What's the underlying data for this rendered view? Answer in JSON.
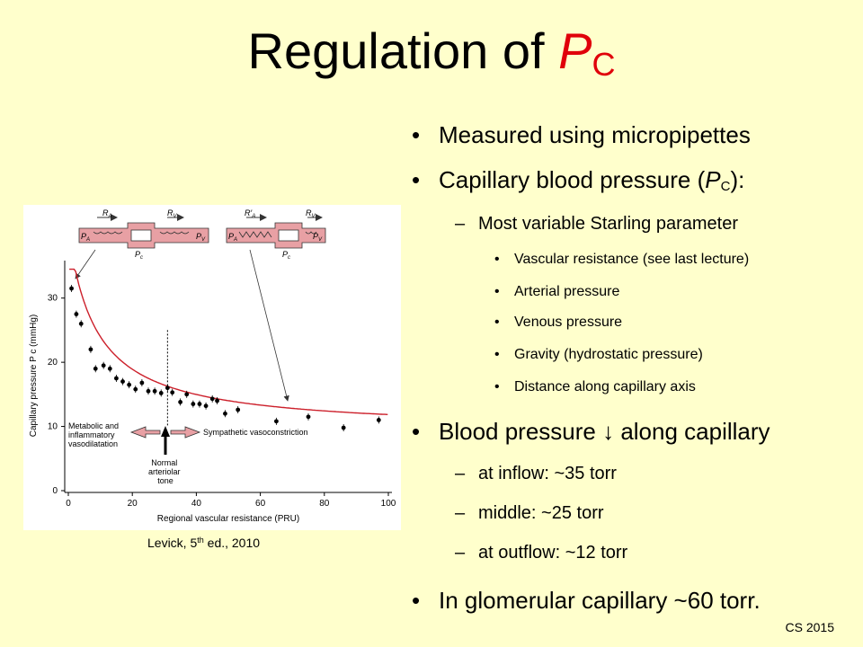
{
  "title": {
    "text": "Regulation of ",
    "pc_letter": "P",
    "pc_sub": "C"
  },
  "bullets": {
    "b1": "Measured using micropipettes",
    "b2_pre": "Capillary blood pressure (",
    "b2_p": "P",
    "b2_sub": "C",
    "b2_post": "):",
    "b2_dash1": "Most variable Starling parameter",
    "b2_items": [
      "Vascular resistance (see last lecture)",
      "Arterial pressure",
      "Venous pressure",
      "Gravity (hydrostatic pressure)",
      "Distance along capillary axis"
    ],
    "b3": "Blood pressure ↓ along capillary",
    "b3_items": [
      "at inflow: ~35 torr",
      "middle: ~25 torr",
      "at outflow: ~12 torr"
    ],
    "b4": "In glomerular capillary ~60 torr."
  },
  "caption": {
    "pre": "Levick, 5",
    "sup": "th",
    "post": " ed., 2010"
  },
  "footer": "CS 2015",
  "figure": {
    "diagram_left": {
      "ra": "R",
      "ra_sub": "A",
      "rv": "R",
      "rv_sub": "V",
      "pa": "P",
      "pa_sub": "A",
      "pv": "P",
      "pv_sub": "V",
      "pc": "P",
      "pc_sub": "c"
    },
    "diagram_right": {
      "ra": "R′",
      "ra_sub": "A",
      "rv": "R",
      "rv_sub": "V",
      "pa": "P",
      "pa_sub": "A",
      "pv": "P",
      "pv_sub": "V",
      "pc": "P",
      "pc_sub": "c"
    },
    "labels": {
      "left_lines": [
        "Metabolic and",
        "inflammatory",
        "vasodilatation"
      ],
      "right": "Sympathetic vasoconstriction",
      "normal_lines": [
        "Normal",
        "arteriolar",
        "tone"
      ]
    }
  },
  "chart_data": {
    "type": "scatter",
    "title": "",
    "xlabel": "Regional vascular resistance (PRU)",
    "ylabel": "Capillary pressure P c (mmHg)",
    "xlim": [
      0,
      100
    ],
    "ylim": [
      0,
      35
    ],
    "xticks": [
      0,
      20,
      40,
      60,
      80,
      100
    ],
    "yticks": [
      0,
      10,
      20,
      30
    ],
    "curve_color": "#cc1f2a",
    "points": [
      {
        "x": 1,
        "y": 31.5
      },
      {
        "x": 2.5,
        "y": 27.5
      },
      {
        "x": 4,
        "y": 26
      },
      {
        "x": 7,
        "y": 22
      },
      {
        "x": 8.5,
        "y": 19
      },
      {
        "x": 11,
        "y": 19.5
      },
      {
        "x": 13,
        "y": 19
      },
      {
        "x": 15,
        "y": 17.5
      },
      {
        "x": 17,
        "y": 17
      },
      {
        "x": 19,
        "y": 16.5
      },
      {
        "x": 21,
        "y": 15.8
      },
      {
        "x": 23,
        "y": 16.8
      },
      {
        "x": 25,
        "y": 15.5
      },
      {
        "x": 27,
        "y": 15.5
      },
      {
        "x": 29,
        "y": 15.2
      },
      {
        "x": 31,
        "y": 16
      },
      {
        "x": 32.5,
        "y": 15.3
      },
      {
        "x": 35,
        "y": 13.8
      },
      {
        "x": 37,
        "y": 15
      },
      {
        "x": 39,
        "y": 13.5
      },
      {
        "x": 41,
        "y": 13.5
      },
      {
        "x": 43,
        "y": 13.2
      },
      {
        "x": 45,
        "y": 14.3
      },
      {
        "x": 46.5,
        "y": 14
      },
      {
        "x": 49,
        "y": 12
      },
      {
        "x": 53,
        "y": 12.6
      },
      {
        "x": 65,
        "y": 10.8
      },
      {
        "x": 75,
        "y": 11.5
      },
      {
        "x": 86,
        "y": 9.8
      },
      {
        "x": 97,
        "y": 11
      }
    ],
    "normal_tone_x": 31
  }
}
